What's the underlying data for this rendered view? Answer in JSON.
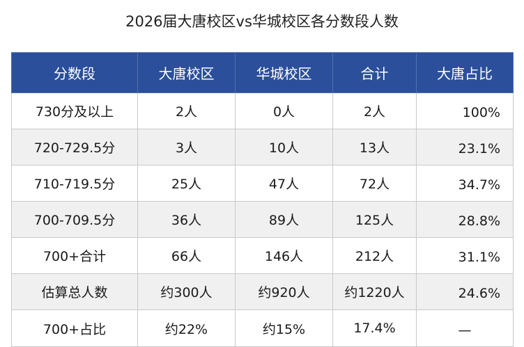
{
  "title": "2026届大唐校区vs华城校区各分数段人数",
  "table": {
    "headers": [
      "分数段",
      "大唐校区",
      "华城校区",
      "合计",
      "大唐占比"
    ],
    "rows": [
      [
        "730分及以上",
        "2人",
        "0人",
        "2人",
        "100%"
      ],
      [
        "720-729.5分",
        "3人",
        "10人",
        "13人",
        "23.1%"
      ],
      [
        "710-719.5分",
        "25人",
        "47人",
        "72人",
        "34.7%"
      ],
      [
        "700-709.5分",
        "36人",
        "89人",
        "125人",
        "28.8%"
      ],
      [
        "700+合计",
        "66人",
        "146人",
        "212人",
        "31.1%"
      ],
      [
        "估算总人数",
        "约300人",
        "约920人",
        "约1220人",
        "24.6%"
      ],
      [
        "700+占比",
        "约22%",
        "约15%",
        "17.4%",
        "—"
      ]
    ]
  },
  "colors": {
    "header_bg": "#2b4f9a",
    "header_text": "#ffffff",
    "alt_row_bg": "#f0f0f0",
    "border": "#c9c9c9"
  }
}
